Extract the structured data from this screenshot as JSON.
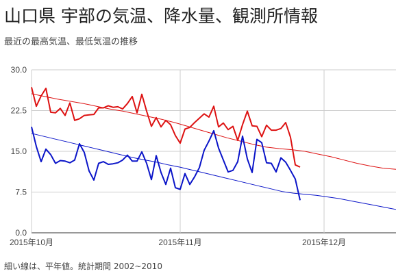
{
  "header": {
    "title": "山口県 宇部の気温、降水量、観測所情報",
    "subtitle": "最近の最高気温、最低気温の推移"
  },
  "footer": {
    "note": "細い線は、平年値。統計期間 2002~2010"
  },
  "chart_data": {
    "type": "line",
    "title": "",
    "xlabel": "",
    "ylabel": "",
    "ylim": [
      0,
      30
    ],
    "y_ticks": [
      "0.0",
      "7.5",
      "15.0",
      "22.5",
      "30.0"
    ],
    "x_ticks": [
      {
        "label": "2015年10月",
        "day": 0
      },
      {
        "label": "2015年11月",
        "day": 31
      },
      {
        "label": "2015年12月",
        "day": 61
      }
    ],
    "x_range_days": [
      0,
      76
    ],
    "grid": true,
    "series": [
      {
        "key": "daily-high",
        "color": "#dd1111",
        "stroke_width": 2,
        "start_day": 0,
        "values": [
          26.8,
          23.3,
          25.2,
          26.6,
          22.2,
          22.1,
          22.9,
          21.6,
          23.9,
          20.7,
          21.0,
          21.6,
          21.7,
          21.8,
          23.0,
          23.0,
          23.4,
          23.1,
          23.2,
          22.8,
          23.8,
          25.1,
          22.1,
          25.5,
          22.4,
          19.6,
          21.2,
          19.5,
          20.7,
          19.9,
          17.9,
          16.5,
          19.1,
          19.4,
          20.3,
          21.1,
          21.9,
          21.3,
          23.3,
          19.5,
          20.2,
          19.0,
          19.6,
          17.0,
          19.9,
          22.4,
          19.7,
          19.6,
          17.7,
          19.8,
          18.9,
          18.9,
          19.2,
          20.3,
          17.6,
          12.5,
          12.1
        ]
      },
      {
        "key": "daily-low",
        "color": "#0a14c8",
        "stroke_width": 2,
        "start_day": 0,
        "values": [
          19.5,
          15.9,
          13.1,
          15.4,
          14.4,
          12.8,
          13.3,
          13.2,
          12.9,
          13.4,
          16.4,
          14.8,
          11.4,
          9.7,
          12.8,
          13.1,
          12.6,
          12.7,
          12.9,
          13.4,
          14.3,
          13.2,
          13.2,
          14.9,
          12.8,
          9.8,
          14.2,
          11.1,
          8.9,
          11.9,
          8.3,
          8.0,
          10.9,
          8.9,
          10.3,
          12.0,
          15.2,
          16.9,
          18.8,
          15.6,
          13.4,
          11.2,
          11.5,
          13.1,
          17.8,
          13.6,
          11.1,
          17.2,
          16.6,
          12.9,
          12.8,
          11.2,
          13.8,
          13.0,
          11.5,
          9.9,
          6.0
        ]
      },
      {
        "key": "normal-high",
        "color": "#dd1111",
        "stroke_width": 1,
        "start_day": 0,
        "values": [
          25.6,
          25.1,
          24.6,
          24.2,
          23.8,
          23.3,
          22.8,
          22.4,
          21.9,
          21.4,
          20.9,
          20.3,
          19.6,
          18.9,
          18.2,
          17.5,
          16.9,
          16.3,
          15.8,
          15.5,
          15.3,
          15.0,
          14.5,
          14.0,
          13.4,
          12.8,
          12.3,
          11.9,
          11.7
        ]
      },
      {
        "key": "normal-low",
        "color": "#0a14c8",
        "stroke_width": 1,
        "start_day": 0,
        "values": [
          18.3,
          17.8,
          17.3,
          16.8,
          16.3,
          15.8,
          15.3,
          14.8,
          14.3,
          13.8,
          13.4,
          13.0,
          12.5,
          12.1,
          11.6,
          11.1,
          10.6,
          10.1,
          9.6,
          9.1,
          8.6,
          8.1,
          7.6,
          7.3,
          7.1,
          6.9,
          6.6,
          6.3,
          5.9,
          5.5,
          5.1,
          4.7,
          4.3
        ]
      }
    ]
  }
}
